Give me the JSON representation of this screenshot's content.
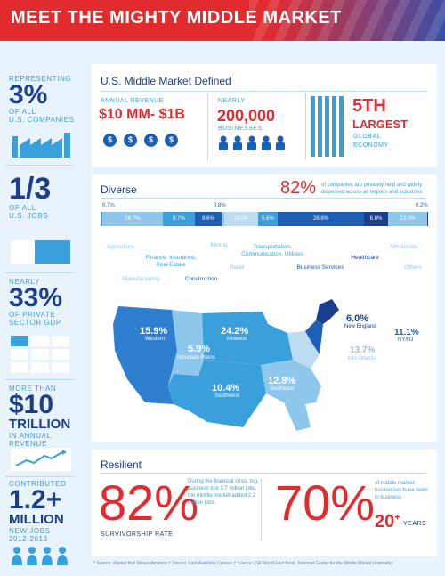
{
  "header": {
    "title": "MEET THE MIGHTY MIDDLE MARKET"
  },
  "sidebar": {
    "s1_label_a": "REPRESENTING",
    "s1_big": "3%",
    "s1_label_b": "OF ALL",
    "s1_label_c": "U.S. COMPANIES",
    "s2_big": "1/3",
    "s2_label_a": "OF ALL",
    "s2_label_b": "U.S. JOBS",
    "s3_label_a": "NEARLY",
    "s3_big": "33%",
    "s3_label_b": "OF PRIVATE",
    "s3_label_c": "SECTOR GDP",
    "s4_label_a": "MORE THAN",
    "s4_big": "$10",
    "s4_big2": "TRILLION",
    "s4_label_b": "IN ANNUAL",
    "s4_label_c": "REVENUE",
    "s5_label_a": "CONTRIBUTED",
    "s5_big": "1.2+",
    "s5_big2": "MILLION",
    "s5_label_b": "NEW JOBS",
    "s5_label_c": "2012-2013"
  },
  "defined": {
    "title": "U.S. Middle Market Defined",
    "rev_label": "ANNUAL REVENUE",
    "rev_value": "$10 MM- $1B",
    "biz_label": "NEARLY",
    "biz_value": "200,000",
    "biz_sub": "BUSINESSES",
    "rank_value": "5TH",
    "rank_big": "LARGEST",
    "rank_sub": "GLOBAL",
    "rank_sub2": "ECONOMY",
    "coin_symbol": "$"
  },
  "diverse": {
    "title": "Diverse",
    "pct": "82%",
    "pct_text": "of companies are privately held and widely dispersed across all regions and industries",
    "edge_left": "0.7%",
    "edge_mid": "0.8%",
    "edge_right": "0.2%",
    "segments": [
      "16.7%",
      "8.7%",
      "8.6%",
      "12.0%",
      "5.6%",
      "26.8%",
      "6.8%",
      "13.0%"
    ],
    "industries": {
      "agriculture": "Agriculture",
      "manufacturing": "Manufacturing",
      "finance": "Finance, Insurance, Real Estate",
      "construction": "Construction",
      "mining": "Mining",
      "retail": "Retail",
      "transport": "Transportation, Communication, Utilities",
      "business": "Business Services",
      "healthcare": "Healthcare",
      "wholesale": "Wholesale",
      "others": "Others"
    }
  },
  "map": {
    "western_pct": "15.9%",
    "western": "Western",
    "mountain_pct": "5.9%",
    "mountain": "Mountain Plains",
    "midwest_pct": "24.2%",
    "midwest": "Midwest",
    "southwest_pct": "10.4%",
    "southwest": "Southwest",
    "southeast_pct": "12.8%",
    "southeast": "Southeast",
    "ne_pct": "6.0%",
    "ne": "New England",
    "ny_pct": "11.1%",
    "ny": "NY/NJ",
    "ma_pct": "13.7%",
    "ma": "Mid-Atlantic"
  },
  "resilient": {
    "title": "Resilient",
    "pct": "82%",
    "text": "During the financial crisis, big business lost 3.7 million jobs, the middle market added 2.2 million jobs.",
    "label": "SURVIVORSHIP RATE",
    "pct2": "70%",
    "text2": "of middle market businesses have been in business",
    "years": "20",
    "years_plus": "+",
    "years_label": "YEARS"
  },
  "footnote": "* Source: Market that Moves America   † Source: Last Available Census   ‡ Source: CIA World Fact Book, National Center for the Middle Market (estimate)",
  "colors": {
    "red": "#e22b2f",
    "navy": "#1b3f8c",
    "blue": "#1d5fb4",
    "light": "#3aa0dc"
  }
}
